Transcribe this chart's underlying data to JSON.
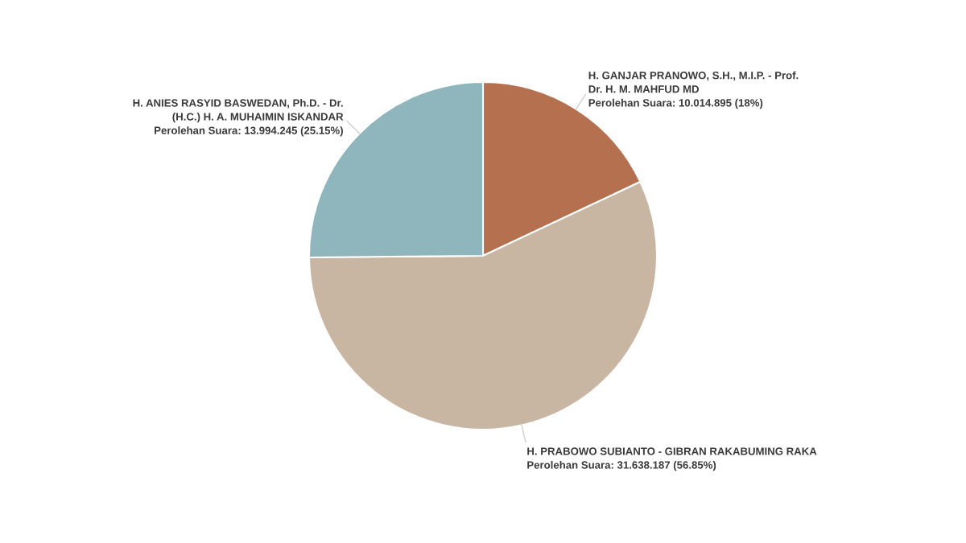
{
  "chart_data": {
    "type": "pie",
    "categories": [
      "H. GANJAR PRANOWO, S.H., M.I.P. - Prof.\nDr. H. M. MAHFUD MD",
      "H. PRABOWO SUBIANTO - GIBRAN RAKABUMING RAKA",
      "H. ANIES RASYID BASWEDAN, Ph.D. - Dr.\n(H.C.) H. A. MUHAIMIN ISKANDAR"
    ],
    "values": [
      10014895,
      31638187,
      13994245
    ],
    "colors": [
      "#b5714f",
      "#c8b6a3",
      "#8fb5bd"
    ],
    "value_labels": [
      "Perolehan Suara: 10.014.895 (18%)",
      "Perolehan Suara: 31.638.187 (56.85%)",
      "Perolehan Suara: 13.994.245 (25.15%)"
    ],
    "legend": false
  }
}
